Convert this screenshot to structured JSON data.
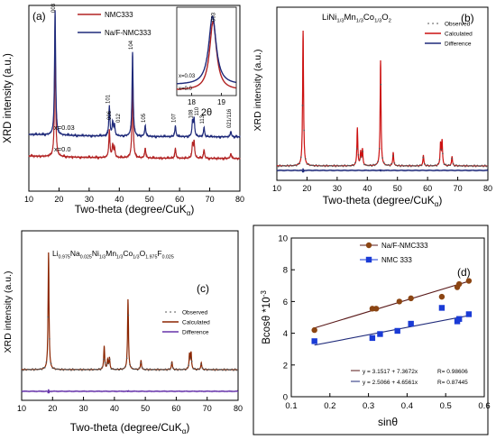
{
  "chart_data": [
    {
      "panel": "(a)",
      "type": "line",
      "xlabel": "Two-theta (degree/CuK",
      "xlabel_sub": "α",
      "xlabel_end": ")",
      "ylabel": "XRD intensity (a.u.)",
      "xlim": [
        10,
        80
      ],
      "xticks": [
        10,
        20,
        30,
        40,
        50,
        60,
        70,
        80
      ],
      "legend_placement": "top",
      "series": [
        {
          "name": "NMC333",
          "color": "#b22222",
          "label": "x=0.0",
          "offset": 0.0
        },
        {
          "name": "Na/F-NMC333",
          "color": "#1f2a7a",
          "label": "x=0.03",
          "offset": 0.18
        }
      ],
      "peaks": [
        {
          "x": 18.7,
          "h": 0.92,
          "label": "003"
        },
        {
          "x": 36.7,
          "h": 0.22,
          "label": "101"
        },
        {
          "x": 37.8,
          "h": 0.1,
          "label": "006"
        },
        {
          "x": 38.4,
          "h": 0.08,
          "label": "012"
        },
        {
          "x": 44.4,
          "h": 0.62,
          "label": "104"
        },
        {
          "x": 48.6,
          "h": 0.08,
          "label": "105"
        },
        {
          "x": 58.6,
          "h": 0.08,
          "label": "107"
        },
        {
          "x": 64.3,
          "h": 0.11,
          "label": "108"
        },
        {
          "x": 64.8,
          "h": 0.13,
          "label": "110"
        },
        {
          "x": 68.1,
          "h": 0.07,
          "label": "113"
        },
        {
          "x": 77.0,
          "h": 0.04,
          "label": "021/116"
        }
      ],
      "inset": {
        "xlabel": "2θ",
        "xlim": [
          17.5,
          19.5
        ],
        "xticks": [
          18,
          19
        ],
        "peak_label": "003",
        "labels": [
          "x=0.03",
          "x=0.0"
        ]
      }
    },
    {
      "panel": "(b)",
      "type": "line",
      "title": "LiNi1/3Mn1/3Co1/3O2",
      "title_parts": [
        {
          "t": "LiNi",
          "s": "base"
        },
        {
          "t": "1/3",
          "s": "sub"
        },
        {
          "t": "Mn",
          "s": "base"
        },
        {
          "t": "1/3",
          "s": "sub"
        },
        {
          "t": "Co",
          "s": "base"
        },
        {
          "t": "1/3",
          "s": "sub"
        },
        {
          "t": "O",
          "s": "base"
        },
        {
          "t": "2",
          "s": "sub"
        }
      ],
      "xlabel": "Two-theta (degree/CuK",
      "xlabel_sub": "α",
      "xlabel_end": ")",
      "ylabel": "XRD intensity (a.u.)",
      "xlim": [
        10,
        80
      ],
      "xticks": [
        10,
        20,
        30,
        40,
        50,
        60,
        70,
        80
      ],
      "legend_placement": "top-right",
      "legend": [
        {
          "name": "Observed",
          "color": "#555555",
          "style": "dots"
        },
        {
          "name": "Calculated",
          "color": "#cc1111",
          "style": "line"
        },
        {
          "name": "Difference",
          "color": "#1f2a7a",
          "style": "line"
        }
      ],
      "peaks": [
        {
          "x": 18.7,
          "h": 1.0
        },
        {
          "x": 36.7,
          "h": 0.28
        },
        {
          "x": 37.8,
          "h": 0.1
        },
        {
          "x": 38.4,
          "h": 0.12
        },
        {
          "x": 44.4,
          "h": 0.78
        },
        {
          "x": 48.6,
          "h": 0.1
        },
        {
          "x": 58.6,
          "h": 0.08
        },
        {
          "x": 64.3,
          "h": 0.16
        },
        {
          "x": 64.8,
          "h": 0.18
        },
        {
          "x": 68.1,
          "h": 0.07
        }
      ]
    },
    {
      "panel": "(c)",
      "type": "line",
      "title": "Li0.975Na0.025Ni1/3Mn1/3Co1/3O1.975F0.025",
      "title_parts": [
        {
          "t": "Li",
          "s": "base"
        },
        {
          "t": "0.975",
          "s": "sub"
        },
        {
          "t": "Na",
          "s": "base"
        },
        {
          "t": "0.025",
          "s": "sub"
        },
        {
          "t": "Ni",
          "s": "base"
        },
        {
          "t": "1/3",
          "s": "sub"
        },
        {
          "t": "Mn",
          "s": "base"
        },
        {
          "t": "1/3",
          "s": "sub"
        },
        {
          "t": "Co",
          "s": "base"
        },
        {
          "t": "1/3",
          "s": "sub"
        },
        {
          "t": "O",
          "s": "base"
        },
        {
          "t": "1.975",
          "s": "sub"
        },
        {
          "t": "F",
          "s": "base"
        },
        {
          "t": "0.025",
          "s": "sub"
        }
      ],
      "xlabel": "Two-theta (degree/CuK",
      "xlabel_sub": "α",
      "xlabel_end": ")",
      "ylabel": "XRD intensity (a.u.)",
      "xlim": [
        10,
        80
      ],
      "xticks": [
        10,
        20,
        30,
        40,
        50,
        60,
        70,
        80
      ],
      "legend_placement": "right",
      "legend": [
        {
          "name": "Observed",
          "color": "#555555",
          "style": "dots"
        },
        {
          "name": "Calculated",
          "color": "#8b2500",
          "style": "line"
        },
        {
          "name": "Difference",
          "color": "#6633aa",
          "style": "line"
        }
      ],
      "peaks": [
        {
          "x": 18.7,
          "h": 1.0
        },
        {
          "x": 36.7,
          "h": 0.2
        },
        {
          "x": 37.8,
          "h": 0.08
        },
        {
          "x": 38.4,
          "h": 0.1
        },
        {
          "x": 44.4,
          "h": 0.6
        },
        {
          "x": 48.6,
          "h": 0.08
        },
        {
          "x": 58.6,
          "h": 0.07
        },
        {
          "x": 64.3,
          "h": 0.13
        },
        {
          "x": 64.8,
          "h": 0.14
        },
        {
          "x": 68.1,
          "h": 0.06
        }
      ]
    },
    {
      "panel": "(d)",
      "type": "scatter",
      "xlabel": "sinθ",
      "ylabel": "Bcosθ *10",
      "ylabel_sup": "-3",
      "xlim": [
        0.1,
        0.6
      ],
      "ylim": [
        0,
        10
      ],
      "xticks": [
        0.1,
        0.2,
        0.3,
        0.4,
        0.5,
        0.6
      ],
      "yticks": [
        0,
        2,
        4,
        6,
        8,
        10
      ],
      "legend_placement": "top-left",
      "series": [
        {
          "name": "Na/F-NMC333",
          "color": "#8b4513",
          "marker": "circle",
          "x": [
            0.16,
            0.31,
            0.32,
            0.38,
            0.41,
            0.49,
            0.53,
            0.535,
            0.56
          ],
          "y": [
            4.2,
            5.55,
            5.55,
            6.0,
            6.2,
            6.3,
            6.9,
            7.1,
            7.3
          ],
          "fit": {
            "intercept": 3.1517,
            "slope": 7.3672
          },
          "fit_label": "y = 3.1517 + 7.3672x",
          "r_label": "R= 0.98606"
        },
        {
          "name": "NMC 333",
          "color": "#1a3bd6",
          "marker": "square",
          "x": [
            0.16,
            0.31,
            0.33,
            0.375,
            0.41,
            0.49,
            0.53,
            0.535,
            0.56
          ],
          "y": [
            3.5,
            3.7,
            3.95,
            4.15,
            4.6,
            5.6,
            4.75,
            4.9,
            5.2
          ],
          "fit": {
            "intercept": 2.5066,
            "slope": 4.6561
          },
          "fit_label": "y = 2.5066 + 4.6561x",
          "r_label": "R= 0.87445"
        }
      ]
    }
  ]
}
